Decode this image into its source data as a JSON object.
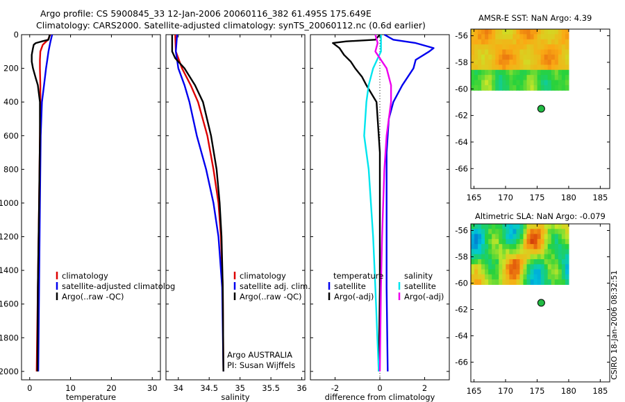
{
  "titles": {
    "line1": "Argo profile: CS 5900845_33 12-Jan-2006 20060116_382 61.495S 175.649E",
    "line2": "Climatology: CARS2000. Satellite-adjusted climatology: synTS_20060112.nc (0.6d earlier)"
  },
  "side_label": "CSIRO 18-Jan-2006 08:32:51",
  "colors": {
    "climatology": "#dd0000",
    "satellite": "#0000ee",
    "argo": "#000000",
    "salinity_satellite": "#00e5ee",
    "salinity_argo": "#ee00ee",
    "dot": "#22bb44"
  },
  "chart_data": [
    {
      "type": "line",
      "name": "temperature-profile",
      "xlabel": "temperature",
      "ylabel": "",
      "xlim": [
        -2,
        32
      ],
      "ylim": [
        2050,
        0
      ],
      "xticks": [
        0,
        10,
        20,
        30
      ],
      "yticks": [
        0,
        200,
        400,
        600,
        800,
        1000,
        1200,
        1400,
        1600,
        1800,
        2000
      ],
      "legend": [
        "climatology",
        "satellite-adjusted climatolog",
        "Argo(..raw -QC)"
      ],
      "series": [
        {
          "name": "climatology",
          "color": "#dd0000",
          "depth": [
            0,
            30,
            60,
            100,
            150,
            200,
            300,
            400,
            600,
            1000,
            1500,
            2000
          ],
          "values": [
            5.0,
            4.5,
            3.2,
            2.6,
            2.5,
            2.5,
            2.6,
            2.6,
            2.5,
            2.3,
            2.0,
            1.7
          ]
        },
        {
          "name": "satellite-adjusted climatolog",
          "color": "#0000ee",
          "depth": [
            0,
            20,
            50,
            100,
            150,
            200,
            300,
            400,
            600,
            1000,
            1500,
            2000
          ],
          "values": [
            5.5,
            5.3,
            5.0,
            4.6,
            4.3,
            4.0,
            3.5,
            3.0,
            2.7,
            2.5,
            2.3,
            2.1
          ]
        },
        {
          "name": "Argo(..raw -QC)",
          "color": "#000000",
          "depth": [
            0,
            30,
            40,
            50,
            60,
            80,
            120,
            160,
            200,
            260,
            300,
            400,
            600,
            1000,
            1500,
            2000
          ],
          "values": [
            4.9,
            4.6,
            3.0,
            1.5,
            1.0,
            0.8,
            0.5,
            0.5,
            0.8,
            1.5,
            2.0,
            2.5,
            2.5,
            2.3,
            2.0,
            1.9
          ]
        }
      ]
    },
    {
      "type": "line",
      "name": "salinity-profile",
      "xlabel": "salinity",
      "ylabel": "",
      "xlim": [
        33.8,
        36.05
      ],
      "ylim": [
        2050,
        0
      ],
      "xticks": [
        34,
        34.5,
        35,
        35.5,
        36
      ],
      "legend": [
        "climatology",
        "satellite adj. clim.",
        "Argo(..raw -QC)"
      ],
      "annotations": [
        "Argo AUSTRALIA",
        "PI: Susan Wijffels"
      ],
      "series": [
        {
          "name": "climatology",
          "color": "#dd0000",
          "depth": [
            0,
            100,
            200,
            300,
            400,
            600,
            800,
            1000,
            1200,
            1500,
            2000
          ],
          "values": [
            33.95,
            33.96,
            34.06,
            34.2,
            34.32,
            34.47,
            34.57,
            34.65,
            34.69,
            34.72,
            34.73
          ]
        },
        {
          "name": "satellite adj. clim.",
          "color": "#0000ee",
          "depth": [
            0,
            100,
            200,
            300,
            400,
            600,
            800,
            1000,
            1200,
            1500,
            2000
          ],
          "values": [
            33.98,
            33.96,
            34.0,
            34.1,
            34.18,
            34.3,
            34.45,
            34.57,
            34.65,
            34.71,
            34.73
          ]
        },
        {
          "name": "Argo(..raw -QC)",
          "color": "#000000",
          "depth": [
            0,
            100,
            140,
            200,
            300,
            400,
            600,
            800,
            1000,
            1200,
            1500,
            2000
          ],
          "values": [
            33.9,
            33.9,
            33.95,
            34.1,
            34.27,
            34.4,
            34.53,
            34.62,
            34.67,
            34.7,
            34.72,
            34.73
          ]
        }
      ]
    },
    {
      "type": "line",
      "name": "difference-profile",
      "xlabel": "difference from climatology",
      "ylabel": "",
      "xlim": [
        -3.1,
        3.1
      ],
      "ylim": [
        2050,
        0
      ],
      "xticks": [
        -2,
        0,
        2
      ],
      "legend": {
        "temperature_header": "temperature",
        "salinity_header": "salinity",
        "temperature": [
          "satellite",
          "Argo(-adj)"
        ],
        "salinity": [
          "satellite",
          "Argo(-adj)"
        ]
      },
      "series": [
        {
          "name": "temperature satellite",
          "color": "#0000ee",
          "depth": [
            0,
            30,
            50,
            80,
            100,
            150,
            200,
            300,
            400,
            500,
            700,
            1000,
            1500,
            2000
          ],
          "values": [
            0.2,
            0.6,
            1.6,
            2.4,
            2.2,
            1.6,
            1.5,
            1.0,
            0.6,
            0.4,
            0.3,
            0.3,
            0.3,
            0.35
          ]
        },
        {
          "name": "temperature Argo(-adj)",
          "color": "#000000",
          "depth": [
            0,
            30,
            40,
            50,
            80,
            120,
            160,
            200,
            250,
            300,
            400,
            500,
            700,
            1000,
            1500,
            2000
          ],
          "values": [
            0.0,
            -0.2,
            -1.5,
            -2.1,
            -1.8,
            -1.6,
            -1.3,
            -1.1,
            -0.8,
            -0.6,
            -0.15,
            -0.1,
            0.0,
            0.0,
            0.0,
            -0.05
          ]
        },
        {
          "name": "salinity satellite",
          "color": "#00e5ee",
          "depth": [
            0,
            100,
            200,
            300,
            400,
            600,
            800,
            1000,
            1200,
            1500,
            2000
          ],
          "values": [
            0.05,
            0.05,
            -0.3,
            -0.5,
            -0.6,
            -0.7,
            -0.5,
            -0.4,
            -0.3,
            -0.2,
            -0.05
          ]
        },
        {
          "name": "salinity Argo(-adj)",
          "color": "#ee00ee",
          "depth": [
            0,
            50,
            100,
            200,
            300,
            400,
            600,
            800,
            1000,
            1200,
            1500,
            2000
          ],
          "values": [
            -0.2,
            -0.1,
            -0.2,
            0.3,
            0.5,
            0.5,
            0.3,
            0.2,
            0.15,
            0.1,
            0.05,
            0.0
          ]
        }
      ]
    },
    {
      "type": "heatmap",
      "name": "sst-map",
      "title": "AMSR-E SST: NaN Argo: 4.39",
      "xlim": [
        164.5,
        186.5
      ],
      "ylim": [
        -67.5,
        -55.5
      ],
      "xticks": [
        165,
        170,
        175,
        180,
        185
      ],
      "yticks": [
        -56,
        -58,
        -60,
        -62,
        -64,
        -66
      ],
      "point": {
        "lon": 175.649,
        "lat": -61.495
      }
    },
    {
      "type": "heatmap",
      "name": "sla-map",
      "title": "Altimetric SLA: NaN Argo: -0.079",
      "xlim": [
        164.5,
        186.5
      ],
      "ylim": [
        -67.5,
        -55.5
      ],
      "xticks": [
        165,
        170,
        175,
        180,
        185
      ],
      "yticks": [
        -56,
        -58,
        -60,
        -62,
        -64,
        -66
      ],
      "point": {
        "lon": 175.649,
        "lat": -61.495
      }
    }
  ]
}
